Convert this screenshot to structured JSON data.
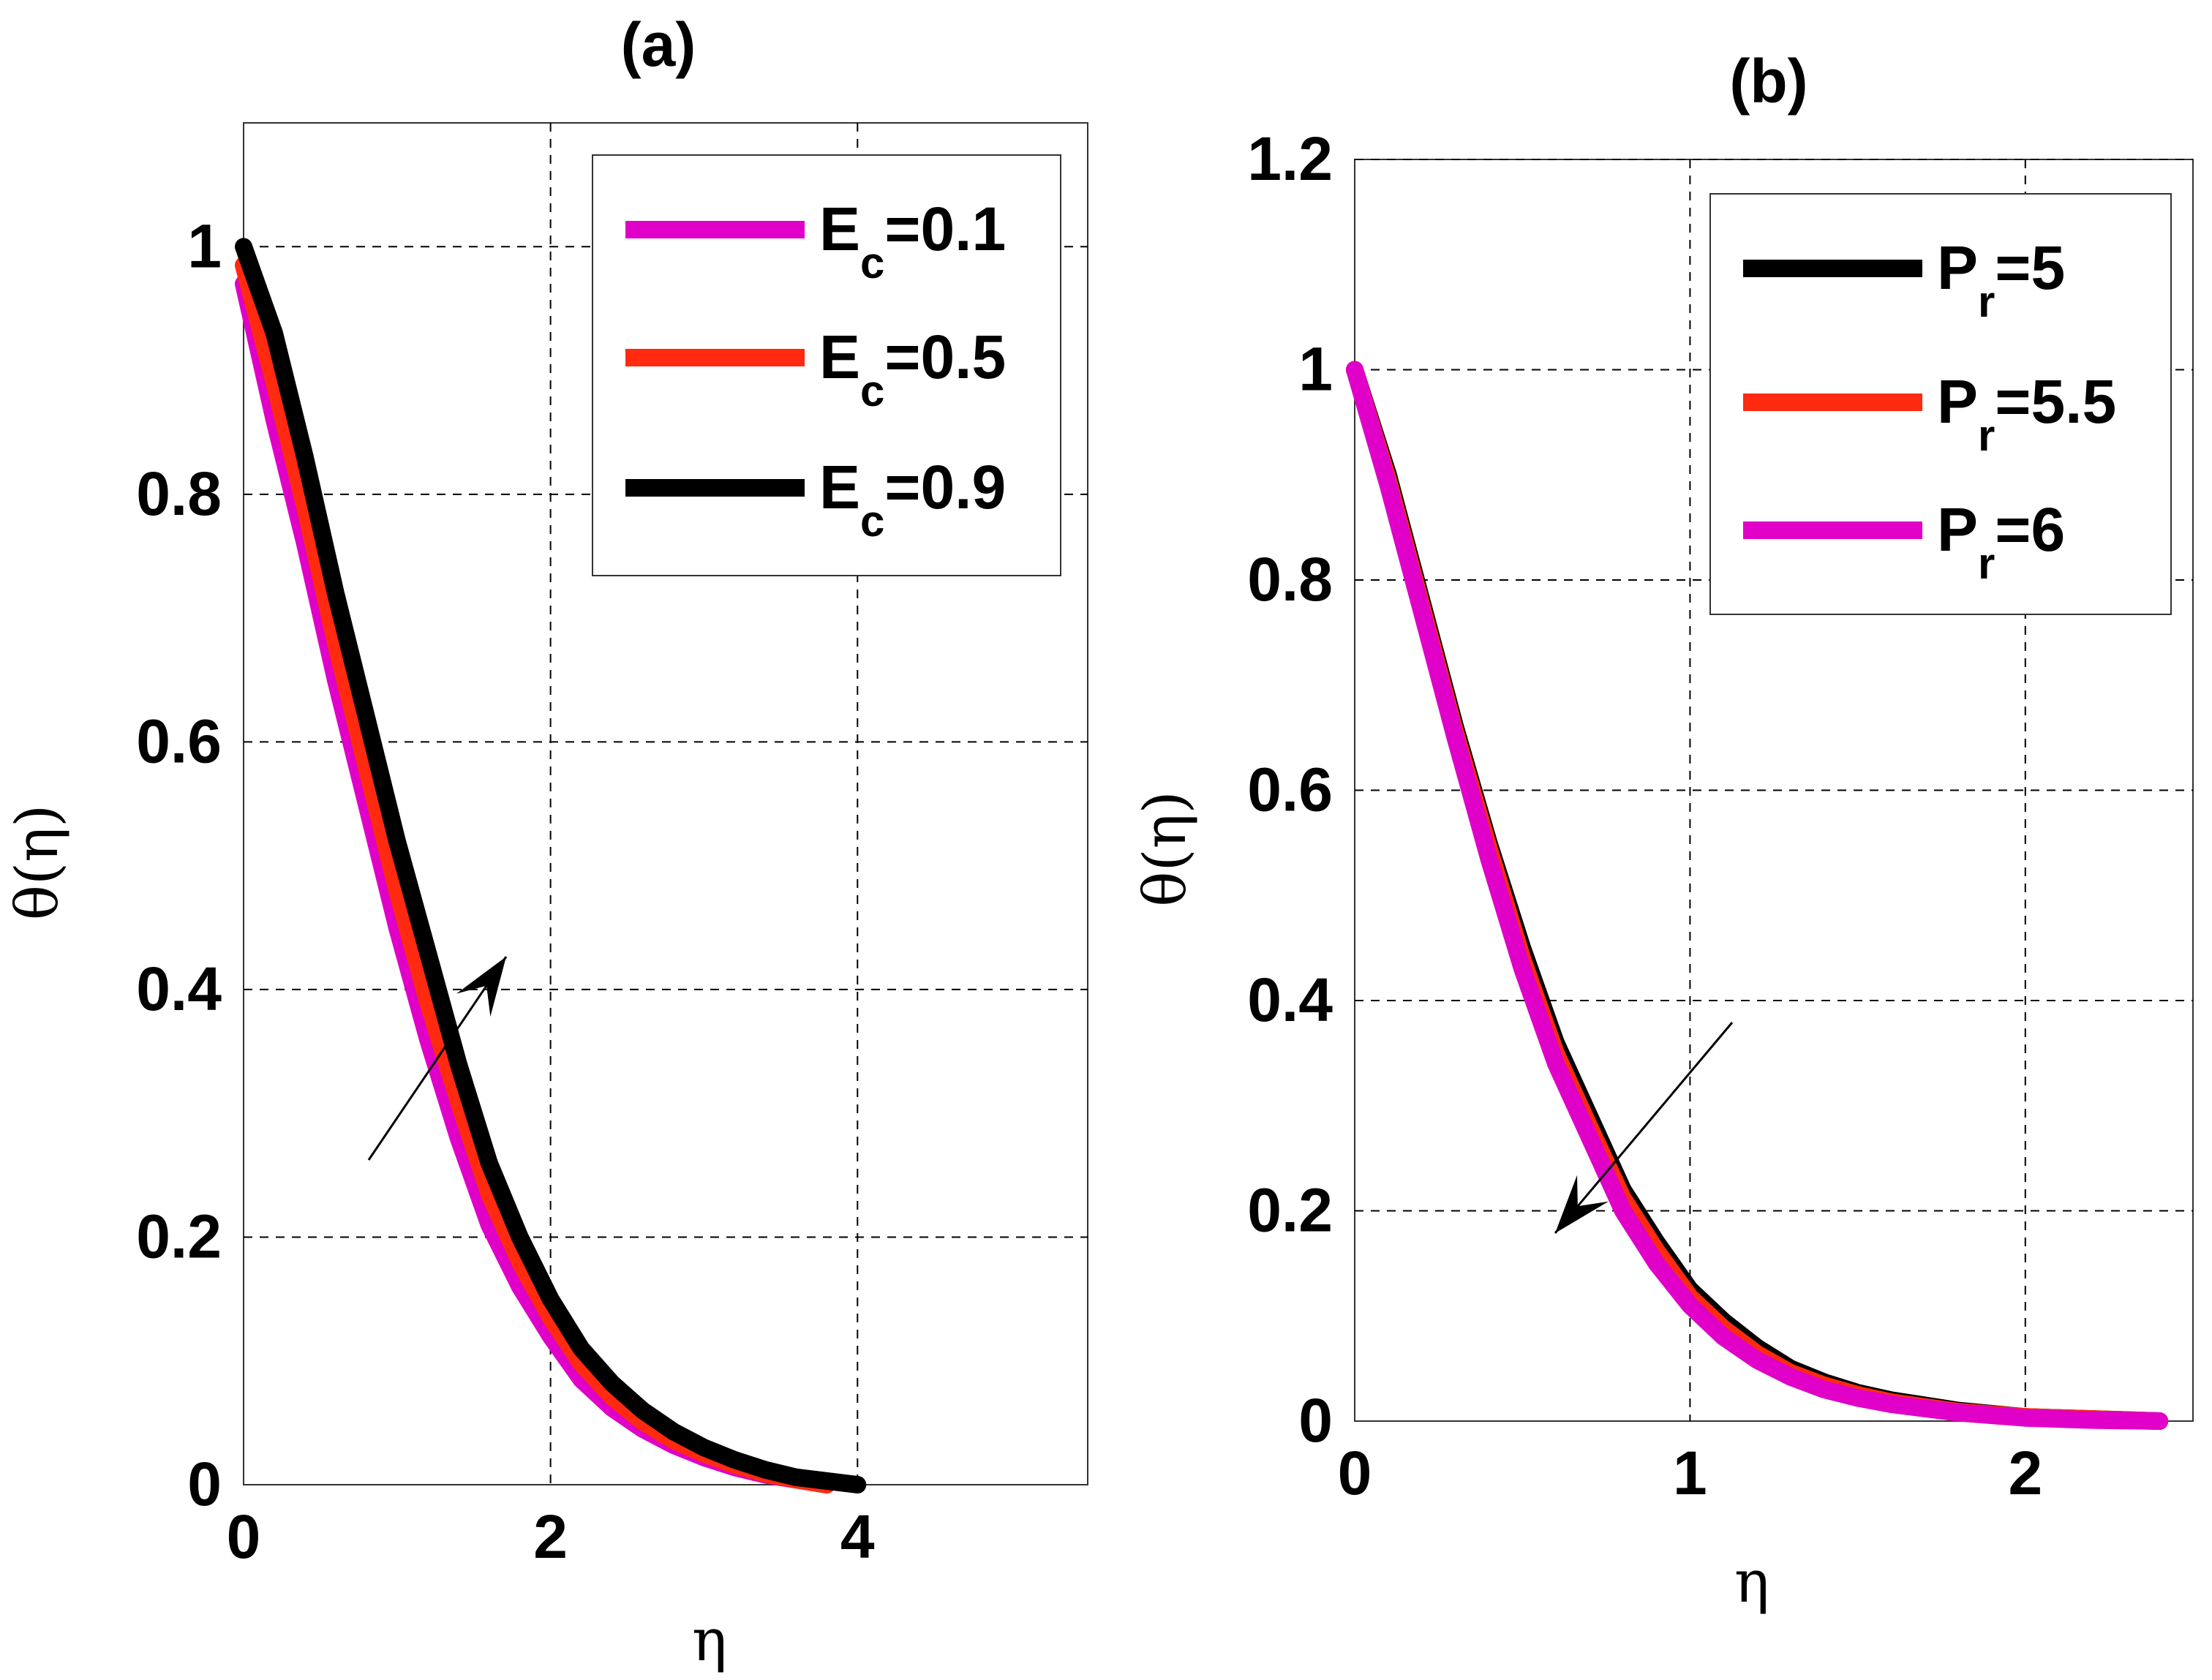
{
  "chart_data": [
    {
      "type": "line",
      "title": "(a)",
      "xlabel": "η",
      "ylabel": "θ(η)",
      "xlim": [
        0,
        5.5
      ],
      "ylim": [
        0,
        1.1
      ],
      "xticks": [
        "0",
        "2",
        "4"
      ],
      "xtick_values": [
        0,
        2,
        4
      ],
      "yticks": [
        "0",
        "0.2",
        "0.4",
        "0.6",
        "0.8",
        "1"
      ],
      "ytick_values": [
        0,
        0.2,
        0.4,
        0.6,
        0.8,
        1
      ],
      "grid": true,
      "legend_position": "top-right",
      "annotation": "arrow pointing up-right (θ increases with Ec)",
      "series": [
        {
          "name": "E",
          "sub": "c",
          "suffix": "=0.1",
          "color": "#e000c8",
          "x": [
            0,
            0.2,
            0.4,
            0.6,
            0.8,
            1.0,
            1.2,
            1.4,
            1.6,
            1.8,
            2.0,
            2.2,
            2.4,
            2.6,
            2.8,
            3.0,
            3.2,
            3.4,
            3.6,
            3.8
          ],
          "y": [
            0.97,
            0.86,
            0.76,
            0.65,
            0.55,
            0.45,
            0.36,
            0.28,
            0.21,
            0.16,
            0.12,
            0.085,
            0.062,
            0.045,
            0.032,
            0.022,
            0.014,
            0.008,
            0.004,
            0.0
          ]
        },
        {
          "name": "E",
          "sub": "c",
          "suffix": "=0.5",
          "color": "#ff2a10",
          "x": [
            0,
            0.2,
            0.4,
            0.6,
            0.8,
            1.0,
            1.2,
            1.4,
            1.6,
            1.8,
            2.0,
            2.2,
            2.4,
            2.6,
            2.8,
            3.0,
            3.2,
            3.4,
            3.6,
            3.8
          ],
          "y": [
            0.985,
            0.89,
            0.79,
            0.68,
            0.58,
            0.48,
            0.39,
            0.31,
            0.235,
            0.18,
            0.135,
            0.098,
            0.071,
            0.051,
            0.036,
            0.025,
            0.016,
            0.009,
            0.004,
            0.0
          ]
        },
        {
          "name": "E",
          "sub": "c",
          "suffix": "=0.9",
          "color": "#000000",
          "x": [
            0,
            0.2,
            0.4,
            0.6,
            0.8,
            1.0,
            1.2,
            1.4,
            1.6,
            1.8,
            2.0,
            2.2,
            2.4,
            2.6,
            2.8,
            3.0,
            3.2,
            3.4,
            3.6,
            3.8,
            4.0
          ],
          "y": [
            1.0,
            0.93,
            0.83,
            0.72,
            0.62,
            0.52,
            0.43,
            0.34,
            0.26,
            0.2,
            0.15,
            0.11,
            0.082,
            0.06,
            0.043,
            0.03,
            0.02,
            0.012,
            0.006,
            0.003,
            0.0
          ]
        }
      ]
    },
    {
      "type": "line",
      "title": "(b)",
      "xlabel": "η",
      "ylabel": "θ(η)",
      "xlim": [
        0,
        2.5
      ],
      "ylim": [
        0,
        1.2
      ],
      "xticks": [
        "0",
        "1",
        "2"
      ],
      "xtick_values": [
        0,
        1,
        2
      ],
      "yticks": [
        "0",
        "0.2",
        "0.4",
        "0.6",
        "0.8",
        "1",
        "1.2"
      ],
      "ytick_values": [
        0,
        0.2,
        0.4,
        0.6,
        0.8,
        1,
        1.2
      ],
      "grid": true,
      "legend_position": "top-right",
      "annotation": "arrow pointing down-left (θ decreases with Pr)",
      "series": [
        {
          "name": "P",
          "sub": "r",
          "suffix": "=5",
          "color": "#000000",
          "x": [
            0,
            0.1,
            0.2,
            0.3,
            0.4,
            0.5,
            0.6,
            0.7,
            0.8,
            0.9,
            1.0,
            1.1,
            1.2,
            1.3,
            1.4,
            1.5,
            1.6,
            1.8,
            2.0,
            2.2,
            2.4
          ],
          "y": [
            1.0,
            0.9,
            0.78,
            0.66,
            0.55,
            0.45,
            0.36,
            0.29,
            0.22,
            0.17,
            0.125,
            0.095,
            0.07,
            0.05,
            0.037,
            0.027,
            0.02,
            0.01,
            0.004,
            0.002,
            0.0
          ]
        },
        {
          "name": "P",
          "sub": "r",
          "suffix": "=5.5",
          "color": "#ff2a10",
          "x": [
            0,
            0.1,
            0.2,
            0.3,
            0.4,
            0.5,
            0.6,
            0.7,
            0.8,
            0.9,
            1.0,
            1.1,
            1.2,
            1.3,
            1.4,
            1.5,
            1.6,
            1.8,
            2.0,
            2.2,
            2.4
          ],
          "y": [
            1.0,
            0.895,
            0.775,
            0.655,
            0.545,
            0.44,
            0.35,
            0.28,
            0.212,
            0.162,
            0.118,
            0.088,
            0.064,
            0.046,
            0.034,
            0.025,
            0.018,
            0.009,
            0.004,
            0.002,
            0.0
          ]
        },
        {
          "name": "P",
          "sub": "r",
          "suffix": "=6",
          "color": "#e000c8",
          "x": [
            0,
            0.1,
            0.2,
            0.3,
            0.4,
            0.5,
            0.6,
            0.7,
            0.8,
            0.9,
            1.0,
            1.1,
            1.2,
            1.3,
            1.4,
            1.5,
            1.6,
            1.8,
            2.0,
            2.2,
            2.4
          ],
          "y": [
            1.0,
            0.89,
            0.77,
            0.65,
            0.535,
            0.43,
            0.34,
            0.27,
            0.2,
            0.15,
            0.11,
            0.08,
            0.058,
            0.042,
            0.03,
            0.022,
            0.016,
            0.008,
            0.003,
            0.001,
            0.0
          ]
        }
      ]
    }
  ]
}
